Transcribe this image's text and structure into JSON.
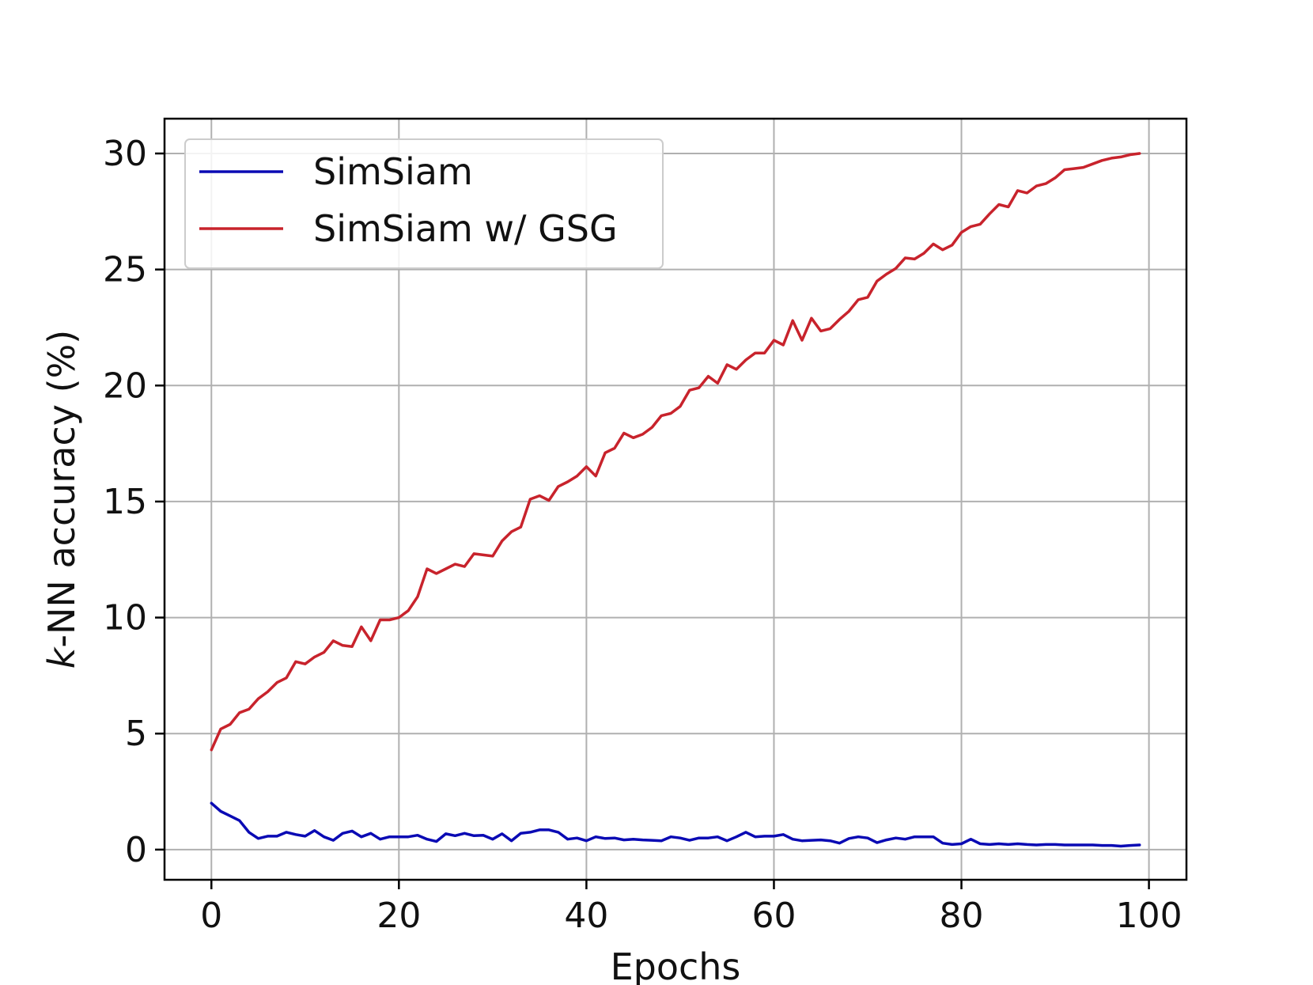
{
  "chart_data": {
    "type": "line",
    "xlabel": "Epochs",
    "ylabel_italic": "k",
    "ylabel_rest": "-NN accuracy (%)",
    "xlim": [
      -5,
      104
    ],
    "ylim": [
      -1.3,
      31.5
    ],
    "xticks": [
      0,
      20,
      40,
      60,
      80,
      100
    ],
    "yticks": [
      0,
      5,
      10,
      15,
      20,
      25,
      30
    ],
    "grid": true,
    "legend_position": "top-left",
    "series": [
      {
        "name": "SimSiam",
        "color": "#0a0ab4",
        "values": [
          2.0,
          1.65,
          1.45,
          1.25,
          0.75,
          0.48,
          0.58,
          0.58,
          0.75,
          0.65,
          0.58,
          0.82,
          0.55,
          0.4,
          0.7,
          0.8,
          0.55,
          0.7,
          0.45,
          0.55,
          0.55,
          0.55,
          0.62,
          0.45,
          0.35,
          0.68,
          0.6,
          0.7,
          0.6,
          0.62,
          0.45,
          0.68,
          0.38,
          0.7,
          0.75,
          0.85,
          0.85,
          0.75,
          0.45,
          0.5,
          0.38,
          0.55,
          0.48,
          0.5,
          0.42,
          0.45,
          0.42,
          0.4,
          0.38,
          0.55,
          0.5,
          0.4,
          0.5,
          0.5,
          0.55,
          0.38,
          0.55,
          0.75,
          0.55,
          0.58,
          0.58,
          0.65,
          0.45,
          0.38,
          0.4,
          0.42,
          0.38,
          0.28,
          0.48,
          0.55,
          0.5,
          0.3,
          0.42,
          0.5,
          0.45,
          0.55,
          0.55,
          0.55,
          0.28,
          0.22,
          0.25,
          0.45,
          0.25,
          0.22,
          0.25,
          0.22,
          0.25,
          0.22,
          0.2,
          0.22,
          0.22,
          0.2,
          0.2,
          0.2,
          0.2,
          0.18,
          0.18,
          0.15,
          0.18,
          0.2
        ]
      },
      {
        "name": "SimSiam w/ GSG",
        "color": "#c8232c",
        "values": [
          4.3,
          5.2,
          5.4,
          5.9,
          6.05,
          6.5,
          6.8,
          7.2,
          7.4,
          8.1,
          8.0,
          8.3,
          8.5,
          9.0,
          8.8,
          8.75,
          9.6,
          9.0,
          9.9,
          9.9,
          10.0,
          10.3,
          10.9,
          12.1,
          11.9,
          12.1,
          12.3,
          12.2,
          12.75,
          12.7,
          12.65,
          13.3,
          13.7,
          13.9,
          15.1,
          15.25,
          15.05,
          15.65,
          15.85,
          16.1,
          16.5,
          16.1,
          17.1,
          17.3,
          17.95,
          17.75,
          17.9,
          18.2,
          18.7,
          18.8,
          19.1,
          19.8,
          19.9,
          20.4,
          20.1,
          20.9,
          20.7,
          21.1,
          21.4,
          21.4,
          21.95,
          21.75,
          22.8,
          21.95,
          22.9,
          22.35,
          22.45,
          22.85,
          23.2,
          23.7,
          23.8,
          24.5,
          24.8,
          25.05,
          25.5,
          25.45,
          25.7,
          26.1,
          25.85,
          26.05,
          26.6,
          26.85,
          26.95,
          27.4,
          27.8,
          27.7,
          28.4,
          28.3,
          28.6,
          28.7,
          28.95,
          29.3,
          29.35,
          29.4,
          29.55,
          29.7,
          29.8,
          29.85,
          29.95,
          30.0
        ]
      }
    ]
  }
}
